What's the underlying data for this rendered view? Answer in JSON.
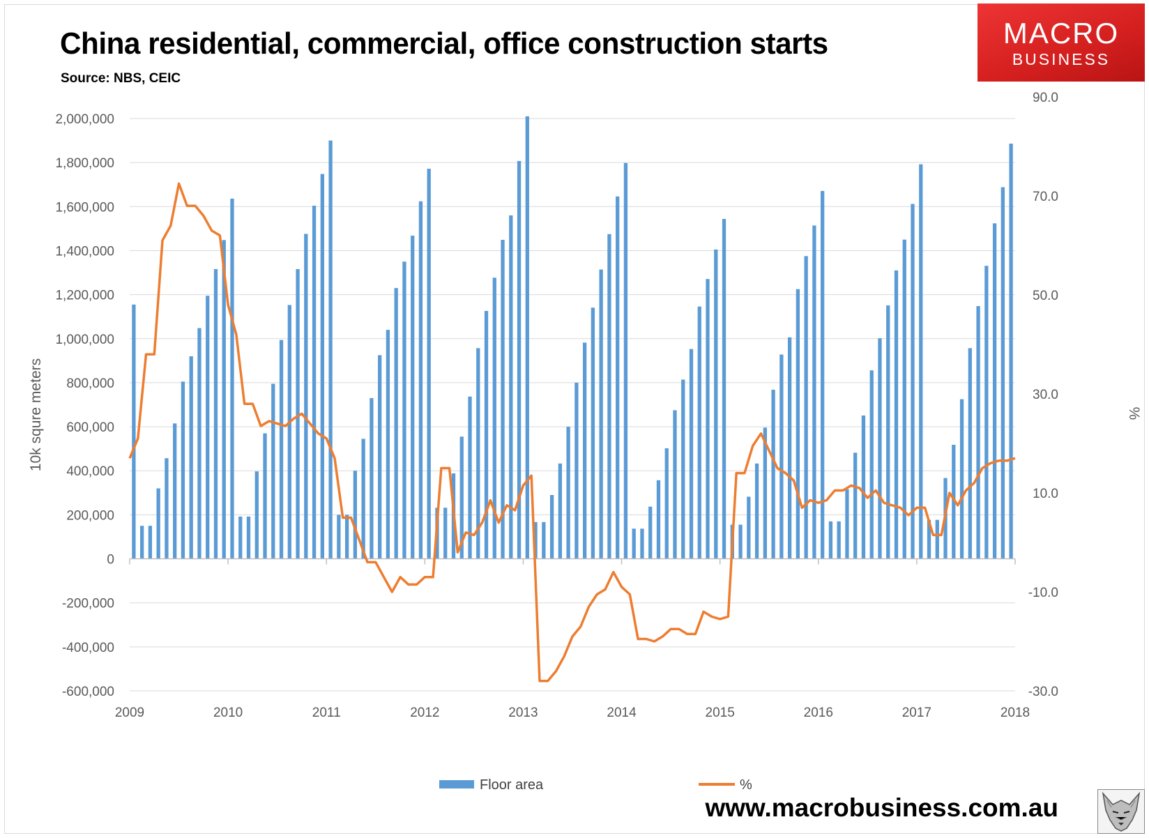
{
  "header": {
    "title": "China residential, commercial, office construction starts",
    "subtitle": "Source: NBS, CEIC",
    "brand_line1": "MACRO",
    "brand_line2": "BUSINESS",
    "website": "www.macrobusiness.com.au"
  },
  "colors": {
    "bar": "#5b9bd5",
    "line": "#ed7d31",
    "grid": "#d9d9d9",
    "brand": "#e02424"
  },
  "icons": {
    "logo": "wolf-head-icon"
  },
  "chart_data": {
    "type": "bar",
    "title": "China residential, commercial, office construction starts",
    "subtitle": "Source: NBS, CEIC",
    "ylabel": "10k squre meters",
    "y2label": "%",
    "ylim": [
      -600000,
      2000000
    ],
    "y_ticks": [
      "2,000,000",
      "1,800,000",
      "1,600,000",
      "1,400,000",
      "1,200,000",
      "1,000,000",
      "800,000",
      "600,000",
      "400,000",
      "200,000",
      "0",
      "-200,000",
      "-400,000",
      "-600,000"
    ],
    "y2lim": [
      -30,
      90
    ],
    "y2_ticks": [
      "90.0",
      "70.0",
      "50.0",
      "30.0",
      "10.0",
      "-10.0",
      "-30.0"
    ],
    "x_ticks": [
      "2009",
      "2010",
      "2011",
      "2012",
      "2013",
      "2014",
      "2015",
      "2016",
      "2017",
      "2018"
    ],
    "grid": true,
    "legend_position": "bottom",
    "x_start": "2009-01",
    "series": [
      {
        "name": "Floor area",
        "type": "bar",
        "axis": "left",
        "values": [
          1155000,
          150000,
          150000,
          320000,
          457000,
          615000,
          805000,
          920000,
          1048000,
          1195000,
          1316000,
          1448000,
          1636000,
          192000,
          192000,
          397000,
          570000,
          795000,
          994000,
          1153000,
          1316000,
          1476000,
          1604000,
          1748000,
          1900000,
          200000,
          200000,
          400000,
          545000,
          730000,
          925000,
          1040000,
          1230000,
          1350000,
          1468000,
          1624000,
          1772000,
          232000,
          232000,
          388000,
          555000,
          737000,
          957000,
          1126000,
          1277000,
          1449000,
          1560000,
          1807000,
          2010000,
          167000,
          167000,
          290000,
          433000,
          600000,
          800000,
          982000,
          1141000,
          1314000,
          1475000,
          1646000,
          1798000,
          137000,
          137000,
          237000,
          357000,
          502000,
          675000,
          814000,
          953000,
          1146000,
          1271000,
          1405000,
          1544000,
          155000,
          155000,
          282000,
          433000,
          596000,
          768000,
          928000,
          1006000,
          1225000,
          1375000,
          1514000,
          1671000,
          170000,
          170000,
          316000,
          482000,
          651000,
          856000,
          1002000,
          1151000,
          1310000,
          1450000,
          1612000,
          1792000,
          177000,
          177000,
          367000,
          518000,
          725000,
          957000,
          1148000,
          1331000,
          1524000,
          1688000,
          1886000
        ]
      },
      {
        "name": "%",
        "type": "line",
        "axis": "right",
        "values": [
          17.0,
          21.0,
          38.0,
          38.0,
          61.0,
          64.0,
          72.5,
          68.0,
          68.0,
          66.0,
          63.0,
          62.0,
          48.0,
          42.0,
          28.0,
          28.0,
          23.5,
          24.5,
          24.0,
          23.5,
          25.0,
          26.0,
          24.0,
          22.0,
          21.0,
          17.0,
          5.0,
          5.0,
          0.5,
          -4.0,
          -4.0,
          -7.0,
          -10.0,
          -7.0,
          -8.5,
          -8.5,
          -7.0,
          -7.0,
          15.0,
          15.0,
          -2.0,
          2.0,
          1.5,
          4.0,
          8.5,
          4.0,
          7.5,
          6.5,
          11.5,
          13.5,
          -28.0,
          -28.0,
          -26.0,
          -23.0,
          -19.0,
          -17.0,
          -13.0,
          -10.5,
          -9.5,
          -6.0,
          -9.0,
          -10.5,
          -19.5,
          -19.5,
          -20.0,
          -19.0,
          -17.5,
          -17.5,
          -18.5,
          -18.5,
          -14.0,
          -15.0,
          -15.5,
          -15.0,
          14.0,
          14.0,
          19.5,
          22.0,
          18.5,
          15.0,
          14.0,
          12.5,
          7.0,
          8.5,
          8.0,
          8.5,
          10.5,
          10.5,
          11.5,
          11.0,
          9.0,
          10.5,
          8.0,
          7.5,
          7.0,
          5.5,
          7.0,
          7.0,
          1.5,
          1.5,
          10.0,
          7.5,
          10.5,
          12.0,
          15.0,
          16.0,
          16.5,
          16.5,
          17.0
        ]
      }
    ]
  }
}
